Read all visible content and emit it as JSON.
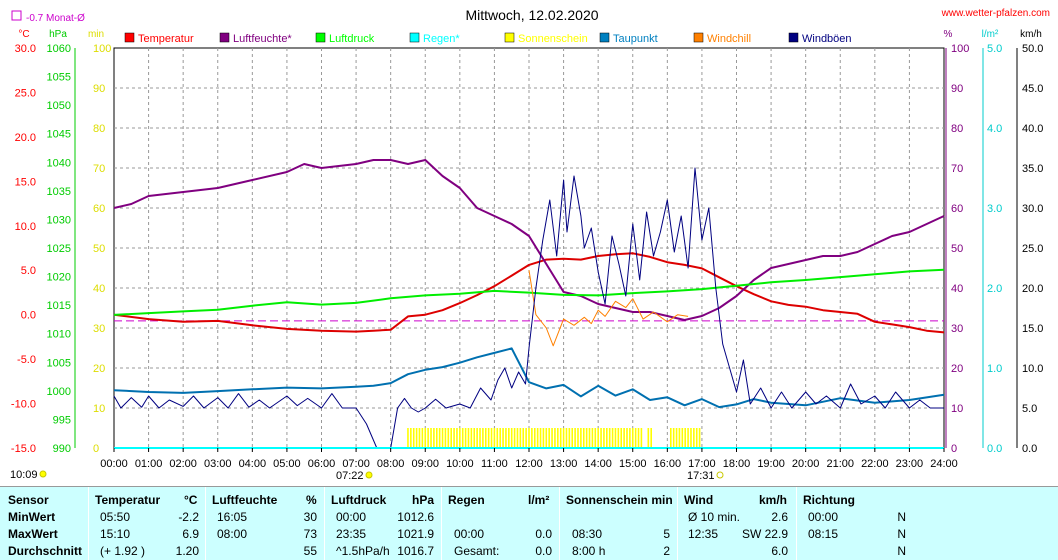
{
  "header": {
    "title": "Mittwoch, 12.02.2020",
    "website": "www.wetter-pfalzen.com",
    "month_note": "-0.7 Monat-Ø",
    "sunrise": "07:22",
    "sunset": "17:31",
    "current_time": "10:09"
  },
  "chart_data": {
    "type": "line",
    "title": "Mittwoch, 12.02.2020",
    "x_unit": "hours",
    "x_ticks": [
      "00:00",
      "01:00",
      "02:00",
      "03:00",
      "04:00",
      "05:00",
      "06:00",
      "07:00",
      "08:00",
      "09:00",
      "10:00",
      "11:00",
      "12:00",
      "13:00",
      "14:00",
      "15:00",
      "16:00",
      "17:00",
      "18:00",
      "19:00",
      "20:00",
      "21:00",
      "22:00",
      "23:00",
      "24:00"
    ],
    "axes": {
      "temp": {
        "unit": "°C",
        "min": -15,
        "max": 30,
        "ticks": [
          "30.0",
          "25.0",
          "20.0",
          "15.0",
          "10.0",
          "5.0",
          "0.0",
          "-5.0",
          "-10.0",
          "-15.0"
        ],
        "color": "#ff0000"
      },
      "pressure": {
        "unit": "hPa",
        "min": 990,
        "max": 1060,
        "ticks": [
          "1060",
          "1055",
          "1050",
          "1045",
          "1040",
          "1035",
          "1030",
          "1025",
          "1020",
          "1015",
          "1010",
          "1005",
          "1000",
          "995",
          "990"
        ],
        "color": "#00cc00"
      },
      "sunshine": {
        "unit": "min",
        "min": 0,
        "max": 100,
        "ticks": [
          "100",
          "90",
          "80",
          "70",
          "60",
          "50",
          "40",
          "30",
          "20",
          "10",
          "0"
        ],
        "color": "#dddd00"
      },
      "humidity": {
        "unit": "%",
        "min": 0,
        "max": 100,
        "ticks": [
          "100",
          "90",
          "80",
          "70",
          "60",
          "50",
          "40",
          "30",
          "20",
          "10",
          "0"
        ],
        "color": "#800080"
      },
      "rain": {
        "unit": "l/m²",
        "min": 0,
        "max": 5,
        "ticks": [
          "5.0",
          "4.0",
          "3.0",
          "2.0",
          "1.0",
          "0.0"
        ],
        "color": "#00cccc"
      },
      "wind": {
        "unit": "km/h",
        "min": 0,
        "max": 50,
        "ticks": [
          "50.0",
          "45.0",
          "40.0",
          "35.0",
          "30.0",
          "25.0",
          "20.0",
          "15.0",
          "10.0",
          "5.0",
          "0.0"
        ],
        "color": "#000000"
      }
    },
    "monthly_avg_temp": -0.7,
    "legend": [
      {
        "name": "Temperatur",
        "color": "#ff0000"
      },
      {
        "name": "Luftfeuchte*",
        "color": "#800080"
      },
      {
        "name": "Luftdruck",
        "color": "#00ff00"
      },
      {
        "name": "Regen*",
        "color": "#00ffff"
      },
      {
        "name": "Sonnenschein",
        "color": "#ffff00"
      },
      {
        "name": "Taupunkt",
        "color": "#0080c0"
      },
      {
        "name": "Windchill",
        "color": "#ff8000"
      },
      {
        "name": "Windböen",
        "color": "#000080"
      }
    ],
    "series": [
      {
        "key": "temperature",
        "axis": "temp",
        "color": "#dd0000",
        "width": 2,
        "x": [
          0,
          1,
          2,
          3,
          4,
          5,
          6,
          7,
          7.5,
          8,
          8.5,
          9,
          9.5,
          10,
          10.5,
          11,
          11.5,
          12,
          12.5,
          13,
          13.5,
          14,
          14.5,
          15,
          15.5,
          16,
          16.5,
          17,
          17.5,
          18,
          18.5,
          19,
          19.5,
          20,
          20.5,
          21,
          21.5,
          22,
          22.5,
          23,
          23.5,
          24
        ],
        "y": [
          0,
          -0.5,
          -0.8,
          -0.7,
          -1.2,
          -1.6,
          -1.8,
          -1.9,
          -1.8,
          -1.7,
          -0.2,
          0,
          0.5,
          1.3,
          2.2,
          3.2,
          4.4,
          5.6,
          6.2,
          6.3,
          6.2,
          6.6,
          6.8,
          6.9,
          6.5,
          5.9,
          5.6,
          5.2,
          4.2,
          3.2,
          2.3,
          1.5,
          1.1,
          0.9,
          0.5,
          0.3,
          0.1,
          -0.8,
          -1.1,
          -1.4,
          -1.8,
          -2.0
        ]
      },
      {
        "key": "humidity",
        "axis": "humidity",
        "color": "#800080",
        "width": 2,
        "x": [
          0,
          0.5,
          1,
          2,
          3,
          4,
          5,
          5.5,
          6,
          7,
          7.5,
          8,
          8.5,
          9,
          9.5,
          10,
          10.5,
          11,
          11.5,
          12,
          12.5,
          13,
          13.5,
          14,
          14.5,
          15,
          15.5,
          16,
          16.5,
          17,
          17.5,
          18,
          18.5,
          19,
          19.5,
          20,
          20.5,
          21,
          21.5,
          22,
          22.5,
          23,
          23.5,
          24
        ],
        "y": [
          60,
          61,
          63,
          64,
          65,
          67,
          69,
          71,
          70,
          71,
          72,
          72,
          71,
          72,
          68,
          65,
          60,
          58,
          56,
          53,
          46,
          39,
          38,
          36,
          35,
          34,
          34,
          33,
          32,
          33,
          35,
          38,
          42,
          45,
          46,
          47,
          48,
          48,
          49,
          51,
          53,
          54,
          56,
          58
        ]
      },
      {
        "key": "pressure",
        "axis": "pressure",
        "color": "#00ee00",
        "width": 2,
        "x": [
          0,
          1,
          2,
          3,
          4,
          5,
          6,
          7,
          8,
          9,
          10,
          11,
          12,
          13,
          14,
          15,
          16,
          17,
          18,
          19,
          20,
          21,
          22,
          23,
          24
        ],
        "y": [
          1013.3,
          1013.6,
          1013.9,
          1014.2,
          1014.9,
          1015.5,
          1015.1,
          1015.4,
          1016.2,
          1016.7,
          1017,
          1017.5,
          1017.2,
          1016.8,
          1016.7,
          1017.1,
          1017.4,
          1017.8,
          1018.4,
          1019,
          1019.4,
          1019.9,
          1020.4,
          1020.9,
          1021.2
        ]
      },
      {
        "key": "dewpoint",
        "axis": "temp",
        "color": "#0070b0",
        "width": 2,
        "x": [
          0,
          1,
          2,
          3,
          4,
          5,
          6,
          7,
          7.5,
          8,
          8.5,
          9,
          9.5,
          10,
          10.5,
          11,
          11.5,
          12,
          12.5,
          13,
          13.5,
          14,
          14.5,
          15,
          15.5,
          16,
          16.5,
          17,
          17.5,
          18,
          18.5,
          19,
          20,
          21,
          22,
          23,
          24
        ],
        "y": [
          -8.5,
          -8.7,
          -8.8,
          -8.6,
          -8.4,
          -8.2,
          -8.3,
          -8.1,
          -8.0,
          -7.7,
          -6.7,
          -6.2,
          -5.9,
          -5.4,
          -4.8,
          -4.3,
          -3.8,
          -7.6,
          -8.3,
          -7.9,
          -9.2,
          -8.0,
          -9.1,
          -8.4,
          -9.6,
          -9.3,
          -10.2,
          -9.5,
          -10.4,
          -10.1,
          -9.5,
          -9.9,
          -10.2,
          -9.4,
          -9.9,
          -9.6,
          -9.0
        ]
      },
      {
        "key": "windchill",
        "axis": "temp",
        "color": "#ff8000",
        "width": 1,
        "x": [
          12,
          12.2,
          12.5,
          12.7,
          13,
          13.3,
          13.6,
          13.8,
          14,
          14.2,
          14.5,
          14.8,
          15,
          15.3,
          15.6,
          16,
          16.3,
          16.6
        ],
        "y": [
          5.0,
          0,
          -1.5,
          -3.5,
          -0.5,
          -1.2,
          -0.3,
          -1.0,
          0.5,
          -0.2,
          1.5,
          0.8,
          1.8,
          -0.5,
          0.3,
          -0.8,
          0.0,
          -0.2
        ]
      },
      {
        "key": "wind_gusts",
        "axis": "wind",
        "color": "#000080",
        "width": 1,
        "x": [
          0,
          0.2,
          0.5,
          0.8,
          1.0,
          1.3,
          1.6,
          2.0,
          2.3,
          2.6,
          3.0,
          3.3,
          3.6,
          3.9,
          4.2,
          4.5,
          5.0,
          5.3,
          5.6,
          6.0,
          6.3,
          6.6,
          7.0,
          7.3,
          7.6,
          8.0,
          8.2,
          8.4,
          8.6,
          8.8,
          9.0,
          9.3,
          9.6,
          10.0,
          10.3,
          10.6,
          10.9,
          11.1,
          11.3,
          11.5,
          11.7,
          11.9,
          12.0,
          12.2,
          12.4,
          12.6,
          12.8,
          13.0,
          13.1,
          13.3,
          13.5,
          13.6,
          13.8,
          14.0,
          14.2,
          14.4,
          14.6,
          14.8,
          15.0,
          15.2,
          15.4,
          15.6,
          15.8,
          16.0,
          16.2,
          16.4,
          16.6,
          16.8,
          17.0,
          17.2,
          17.4,
          17.6,
          17.8,
          18.0,
          18.2,
          18.4,
          18.7,
          19.0,
          19.3,
          19.6,
          20.0,
          20.3,
          20.6,
          21.0,
          21.3,
          21.6,
          22.0,
          22.3,
          22.6,
          23.0,
          23.3,
          23.6,
          24.0
        ],
        "y": [
          6.5,
          5.0,
          6.3,
          5.1,
          6.5,
          5.0,
          6.0,
          5.2,
          6.5,
          5.0,
          6.3,
          5.0,
          6.8,
          5.1,
          6.0,
          5.0,
          6.5,
          5.3,
          6.2,
          5.0,
          6.8,
          5.0,
          5.0,
          3.0,
          0,
          0,
          5.0,
          6.2,
          5.0,
          4.5,
          5.0,
          6.1,
          5.0,
          5.5,
          5.0,
          7.5,
          6.0,
          8.5,
          10.0,
          7.5,
          9.5,
          8.0,
          12.5,
          20.0,
          26.0,
          31.0,
          24.0,
          33.5,
          27.0,
          34.0,
          29.0,
          25.0,
          27.5,
          22.0,
          18.0,
          26.5,
          23.0,
          19.0,
          28.0,
          21.0,
          29.5,
          24.0,
          27.0,
          31.0,
          24.5,
          29.0,
          22.5,
          35.0,
          26.0,
          30.0,
          20.0,
          13.0,
          10.0,
          7.0,
          11.0,
          5.5,
          7.5,
          5.0,
          7.0,
          5.0,
          7.0,
          5.5,
          6.5,
          5.0,
          8.0,
          5.5,
          6.5,
          5.0,
          7.0,
          5.0,
          6.0,
          5.0,
          5.0
        ]
      },
      {
        "key": "rain",
        "axis": "rain",
        "color": "#00ffff",
        "width": 2,
        "x": [
          0,
          24
        ],
        "y": [
          0,
          0
        ]
      }
    ],
    "sunshine_blocks": [
      [
        8.5,
        15.3
      ],
      [
        15.45,
        15.6
      ],
      [
        16.1,
        17.0
      ]
    ],
    "grid": true
  },
  "stats": {
    "headers": {
      "sensor": "Sensor",
      "temperatur": "Temperatur",
      "temp_unit": "°C",
      "luftfeuchte": "Luftfeuchte",
      "hum_unit": "%",
      "luftdruck": "Luftdruck",
      "press_unit": "hPa",
      "regen": "Regen",
      "rain_unit": "l/m²",
      "sonnenschein": "Sonnenschein min",
      "wind": "Wind",
      "wind_unit": "km/h",
      "richtung": "Richtung"
    },
    "rows": [
      {
        "label": "MinWert",
        "temp_time": "05:50",
        "temp_val": "-2.2",
        "hum_time": "16:05",
        "hum_val": "30",
        "press_time": "00:00",
        "press_val": "1012.6",
        "rain_time": "",
        "rain_val": "",
        "sun_time": "",
        "sun_val": "",
        "wind_time": "Ø 10 min.",
        "wind_val": "2.6",
        "dir_time": "00:00",
        "dir_val": "N"
      },
      {
        "label": "MaxWert",
        "temp_time": "15:10",
        "temp_val": "6.9",
        "hum_time": "08:00",
        "hum_val": "73",
        "press_time": "23:35",
        "press_val": "1021.9",
        "rain_time": "00:00",
        "rain_val": "0.0",
        "sun_time": "08:30",
        "sun_val": "5",
        "wind_time": "12:35",
        "wind_val": "SW 22.9",
        "dir_time": "08:15",
        "dir_val": "N"
      },
      {
        "label": "Durchschnitt",
        "temp_time": "(+ 1.92 )",
        "temp_val": "1.20",
        "hum_time": "",
        "hum_val": "55",
        "press_time": "^1.5hPa/h",
        "press_val": "1016.7",
        "rain_time": "Gesamt:",
        "rain_val": "0.0",
        "sun_time": "8:00 h",
        "sun_val": "2",
        "wind_time": "",
        "wind_val": "6.0",
        "dir_time": "",
        "dir_val": "N"
      }
    ]
  }
}
